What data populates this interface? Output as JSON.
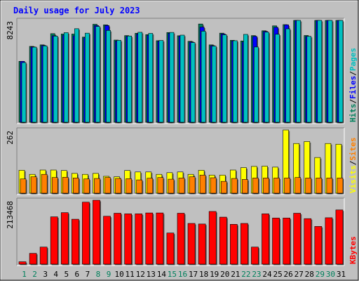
{
  "chart_data": {
    "type": "bar",
    "title": "Daily usage for July 2023",
    "colors": {
      "background": "#c0c0c0",
      "plot_background": "#c0c0c0",
      "title": "#0000ff",
      "hits": "#00805c",
      "files": "#0000ff",
      "pages": "#00c0c0",
      "visits": "#ffff00",
      "sites": "#ff8000",
      "kbytes": "#ff0000",
      "weekend_label": "#00805c",
      "weekday_label": "#000000"
    },
    "categories": [
      "1",
      "2",
      "3",
      "4",
      "5",
      "6",
      "7",
      "8",
      "9",
      "10",
      "11",
      "12",
      "13",
      "14",
      "15",
      "16",
      "17",
      "18",
      "19",
      "20",
      "21",
      "22",
      "23",
      "24",
      "25",
      "26",
      "27",
      "28",
      "29",
      "30",
      "31"
    ],
    "weekend_days": [
      "1",
      "2",
      "8",
      "9",
      "15",
      "16",
      "22",
      "23",
      "29",
      "30"
    ],
    "panels": [
      {
        "name": "hits-files-pages",
        "max_label": "8243",
        "ylim": [
          0,
          8243
        ],
        "legend": [
          {
            "label": "Hits",
            "color": "#00805c"
          },
          {
            "label": "/",
            "color": "#000000"
          },
          {
            "label": "Files",
            "color": "#0000ff"
          },
          {
            "label": "/",
            "color": "#000000"
          },
          {
            "label": "Pages",
            "color": "#00c0c0"
          }
        ],
        "series": [
          {
            "name": "Hits",
            "color": "#00805c",
            "values": [
              4930,
              6140,
              6260,
              7170,
              7140,
              7140,
              6890,
              7930,
              7880,
              6650,
              7010,
              7200,
              7090,
              6600,
              7260,
              7000,
              6550,
              7950,
              6260,
              7210,
              6630,
              6580,
              7010,
              7400,
              7800,
              7900,
              8243,
              7020,
              8243,
              8243,
              8243
            ]
          },
          {
            "name": "Files",
            "color": "#0000ff",
            "values": [
              4930,
              6100,
              6220,
              7000,
              7050,
              7000,
              6850,
              7830,
              7830,
              6580,
              6950,
              7150,
              7050,
              6560,
              7200,
              6980,
              6500,
              7700,
              6200,
              7150,
              6580,
              6500,
              6950,
              7350,
              7680,
              7880,
              8243,
              6950,
              8243,
              8243,
              8243
            ]
          },
          {
            "name": "Pages",
            "color": "#00c0c0",
            "values": [
              4830,
              6080,
              6180,
              6970,
              7250,
              7570,
              7210,
              7750,
              7430,
              6630,
              6980,
              7280,
              7190,
              6620,
              7270,
              7050,
              6450,
              7370,
              6160,
              7080,
              6600,
              7110,
              6090,
              7290,
              7120,
              7560,
              8243,
              6950,
              8243,
              8243,
              8243
            ]
          }
        ]
      },
      {
        "name": "visits-sites",
        "max_label": "262",
        "ylim": [
          0,
          262
        ],
        "legend": [
          {
            "label": "Visits",
            "color": "#ffff00"
          },
          {
            "label": "/",
            "color": "#000000"
          },
          {
            "label": "Sites",
            "color": "#ff8000"
          }
        ],
        "series": [
          {
            "name": "Visits",
            "color": "#ffff00",
            "values": [
              95,
              78,
              96,
              96,
              94,
              82,
              78,
              82,
              70,
              68,
              94,
              88,
              88,
              78,
              85,
              88,
              78,
              95,
              75,
              75,
              96,
              106,
              111,
              112,
              108,
              264,
              206,
              214,
              148,
              206,
              203
            ]
          },
          {
            "name": "Sites",
            "color": "#ff8000",
            "values": [
              59,
              68,
              78,
              65,
              66,
              63,
              59,
              61,
              65,
              61,
              60,
              55,
              62,
              65,
              58,
              63,
              68,
              75,
              64,
              49,
              61,
              57,
              63,
              63,
              63,
              63,
              65,
              63,
              63,
              63,
              63
            ]
          }
        ]
      },
      {
        "name": "kbytes",
        "max_label": "213468",
        "ylim": [
          0,
          213468
        ],
        "legend": [
          {
            "label": "KBytes",
            "color": "#ff0000"
          }
        ],
        "series": [
          {
            "name": "KBytes",
            "color": "#ff0000",
            "values": [
              8000,
              36000,
              57000,
              158000,
              172000,
              150000,
              207000,
              216000,
              160000,
              170000,
              168000,
              168000,
              171000,
              171000,
              104000,
              170000,
              136000,
              134000,
              176000,
              157000,
              133000,
              136000,
              57000,
              168000,
              154000,
              154000,
              170000,
              152000,
              126000,
              155000,
              181000
            ]
          }
        ]
      }
    ]
  }
}
